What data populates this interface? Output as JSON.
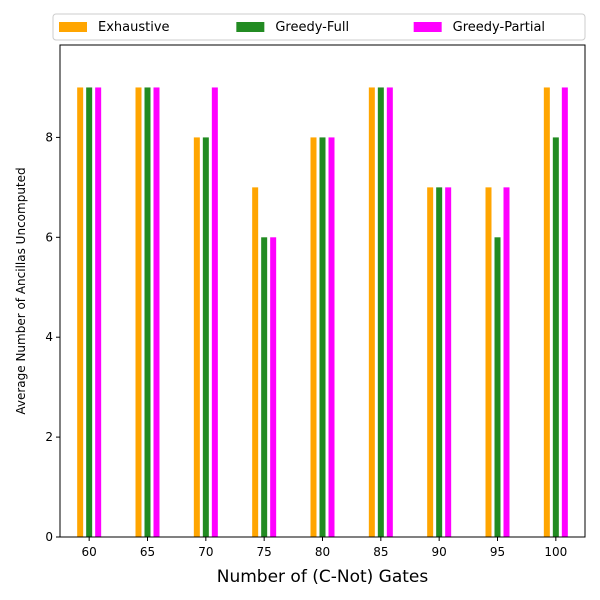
{
  "chart_data": {
    "type": "bar",
    "title": "",
    "xlabel": "Number of (C-Not) Gates",
    "ylabel": "Average Number of Ancillas Uncomputed",
    "categories": [
      "60",
      "65",
      "70",
      "75",
      "80",
      "85",
      "90",
      "95",
      "100"
    ],
    "series": [
      {
        "name": "Exhaustive",
        "color": "#ffa500",
        "values": [
          9,
          9,
          8,
          7,
          8,
          9,
          7,
          7,
          9
        ]
      },
      {
        "name": "Greedy-Full",
        "color": "#228b22",
        "values": [
          9,
          9,
          8,
          6,
          8,
          9,
          7,
          6,
          8
        ]
      },
      {
        "name": "Greedy-Partial",
        "color": "#ff00ff",
        "values": [
          9,
          9,
          9,
          6,
          8,
          9,
          7,
          7,
          9
        ]
      }
    ],
    "ylim": [
      0,
      9.85
    ],
    "yticks": [
      0,
      2,
      4,
      6,
      8
    ],
    "grid": false,
    "legend_position": "top"
  }
}
